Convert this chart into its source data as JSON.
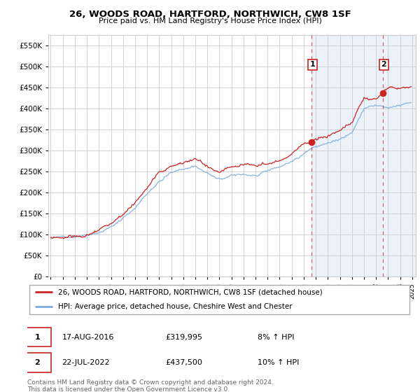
{
  "title": "26, WOODS ROAD, HARTFORD, NORTHWICH, CW8 1SF",
  "subtitle": "Price paid vs. HM Land Registry's House Price Index (HPI)",
  "footer": "Contains HM Land Registry data © Crown copyright and database right 2024.\nThis data is licensed under the Open Government Licence v3.0.",
  "legend_line1": "26, WOODS ROAD, HARTFORD, NORTHWICH, CW8 1SF (detached house)",
  "legend_line2": "HPI: Average price, detached house, Cheshire West and Chester",
  "marker1_date": "17-AUG-2016",
  "marker1_price": "£319,995",
  "marker1_hpi": "8% ↑ HPI",
  "marker2_date": "22-JUL-2022",
  "marker2_price": "£437,500",
  "marker2_hpi": "10% ↑ HPI",
  "red_color": "#cc2222",
  "blue_color": "#7aaddc",
  "fill_color": "#ddeeff",
  "background_color": "#ffffff",
  "grid_color": "#cccccc",
  "ylim": [
    0,
    575000
  ],
  "yticks": [
    0,
    50000,
    100000,
    150000,
    200000,
    250000,
    300000,
    350000,
    400000,
    450000,
    500000,
    550000
  ],
  "marker1_x": 2016.63,
  "marker1_y": 319995,
  "marker2_x": 2022.55,
  "marker2_y": 437500,
  "xlim_left": 1994.8,
  "xlim_right": 2025.3
}
